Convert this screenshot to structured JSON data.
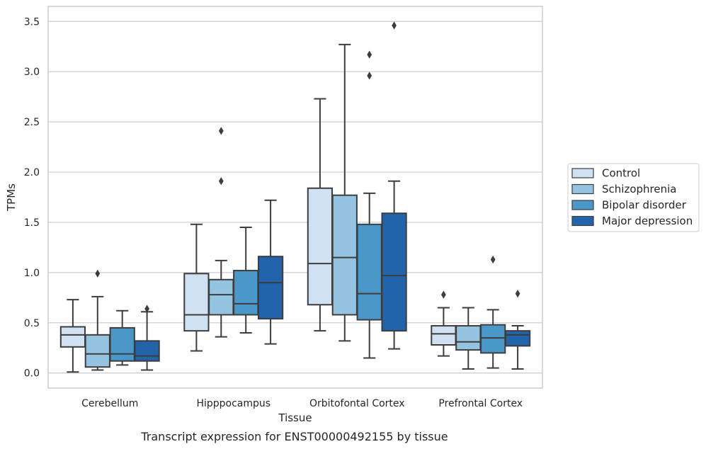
{
  "caption": "Transcript expression for ENST00000492155 by tissue",
  "chart_data": {
    "type": "box",
    "xlabel": "Tissue",
    "ylabel": "TPMs",
    "ylim": [
      -0.15,
      3.65
    ],
    "yticks": [
      0.0,
      0.5,
      1.0,
      1.5,
      2.0,
      2.5,
      3.0,
      3.5
    ],
    "ytick_labels": [
      "0.0",
      "0.5",
      "1.0",
      "1.5",
      "2.0",
      "2.5",
      "3.0",
      "3.5"
    ],
    "grid": "horizontal",
    "legend_position": "outside-right",
    "categories": [
      "Cerebellum",
      "Hipppocampus",
      "Orbitofontal Cortex",
      "Prefrontal Cortex"
    ],
    "series": [
      {
        "name": "Control",
        "color": "#d0e1f2",
        "boxes": [
          {
            "whislo": 0.01,
            "q1": 0.26,
            "med": 0.38,
            "q3": 0.46,
            "whishi": 0.73,
            "fliers": []
          },
          {
            "whislo": 0.22,
            "q1": 0.42,
            "med": 0.58,
            "q3": 0.99,
            "whishi": 1.48,
            "fliers": []
          },
          {
            "whislo": 0.42,
            "q1": 0.68,
            "med": 1.09,
            "q3": 1.84,
            "whishi": 2.73,
            "fliers": []
          },
          {
            "whislo": 0.17,
            "q1": 0.28,
            "med": 0.39,
            "q3": 0.47,
            "whishi": 0.65,
            "fliers": [
              0.78
            ]
          }
        ]
      },
      {
        "name": "Schizophrenia",
        "color": "#94c4df",
        "boxes": [
          {
            "whislo": 0.03,
            "q1": 0.06,
            "med": 0.19,
            "q3": 0.38,
            "whishi": 0.76,
            "fliers": [
              0.99
            ]
          },
          {
            "whislo": 0.36,
            "q1": 0.58,
            "med": 0.78,
            "q3": 0.93,
            "whishi": 1.12,
            "fliers": [
              1.91,
              2.41
            ]
          },
          {
            "whislo": 0.32,
            "q1": 0.58,
            "med": 1.15,
            "q3": 1.77,
            "whishi": 3.27,
            "fliers": []
          },
          {
            "whislo": 0.04,
            "q1": 0.23,
            "med": 0.31,
            "q3": 0.47,
            "whishi": 0.65,
            "fliers": []
          }
        ]
      },
      {
        "name": "Bipolar disorder",
        "color": "#4a98c9",
        "boxes": [
          {
            "whislo": 0.08,
            "q1": 0.12,
            "med": 0.19,
            "q3": 0.45,
            "whishi": 0.62,
            "fliers": []
          },
          {
            "whislo": 0.4,
            "q1": 0.58,
            "med": 0.69,
            "q3": 1.02,
            "whishi": 1.45,
            "fliers": []
          },
          {
            "whislo": 0.15,
            "q1": 0.53,
            "med": 0.79,
            "q3": 1.48,
            "whishi": 1.79,
            "fliers": [
              2.96,
              3.17
            ]
          },
          {
            "whislo": 0.05,
            "q1": 0.2,
            "med": 0.35,
            "q3": 0.48,
            "whishi": 0.63,
            "fliers": [
              1.13
            ]
          }
        ]
      },
      {
        "name": "Major depression",
        "color": "#2164ab",
        "boxes": [
          {
            "whislo": 0.03,
            "q1": 0.12,
            "med": 0.17,
            "q3": 0.32,
            "whishi": 0.61,
            "fliers": [
              0.64
            ]
          },
          {
            "whislo": 0.29,
            "q1": 0.54,
            "med": 0.9,
            "q3": 1.16,
            "whishi": 1.72,
            "fliers": []
          },
          {
            "whislo": 0.24,
            "q1": 0.42,
            "med": 0.97,
            "q3": 1.59,
            "whishi": 1.91,
            "fliers": [
              3.46
            ]
          },
          {
            "whislo": 0.04,
            "q1": 0.27,
            "med": 0.38,
            "q3": 0.42,
            "whishi": 0.47,
            "fliers": [
              0.79
            ]
          }
        ]
      }
    ]
  }
}
